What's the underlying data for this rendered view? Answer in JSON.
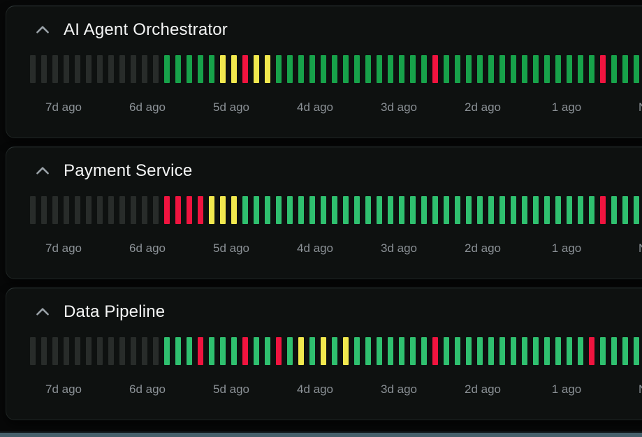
{
  "page": {
    "background": "#070808",
    "bottom_strip_color": "#46606b"
  },
  "status_colors": {
    "nodata": "#282c2a",
    "warn": "#f1e84e",
    "down": "#f0143f"
  },
  "axis_labels": [
    "7d ago",
    "6d ago",
    "5d ago",
    "4d ago",
    "3d ago",
    "2d ago",
    "1 ago",
    "Now"
  ],
  "icons": {
    "collapse": "chevron-up-icon"
  },
  "services": [
    {
      "name": "AI Agent Orchestrator",
      "up_color": "#17a24a",
      "bars": [
        "nodata",
        "nodata",
        "nodata",
        "nodata",
        "nodata",
        "nodata",
        "nodata",
        "nodata",
        "nodata",
        "nodata",
        "nodata",
        "nodata",
        "up",
        "up",
        "up",
        "up",
        "up",
        "warn",
        "warn",
        "down",
        "warn",
        "warn",
        "up",
        "up",
        "up",
        "up",
        "up",
        "up",
        "up",
        "up",
        "up",
        "up",
        "up",
        "up",
        "up",
        "up",
        "down",
        "up",
        "up",
        "up",
        "up",
        "up",
        "up",
        "up",
        "up",
        "up",
        "up",
        "up",
        "up",
        "up",
        "up",
        "down",
        "up",
        "up",
        "up"
      ]
    },
    {
      "name": "Payment Service",
      "up_color": "#2fc06f",
      "bars": [
        "nodata",
        "nodata",
        "nodata",
        "nodata",
        "nodata",
        "nodata",
        "nodata",
        "nodata",
        "nodata",
        "nodata",
        "nodata",
        "nodata",
        "down",
        "down",
        "down",
        "down",
        "warn",
        "warn",
        "warn",
        "up",
        "up",
        "up",
        "up",
        "up",
        "up",
        "up",
        "up",
        "up",
        "up",
        "up",
        "up",
        "up",
        "up",
        "up",
        "up",
        "up",
        "up",
        "up",
        "up",
        "up",
        "up",
        "up",
        "up",
        "up",
        "up",
        "up",
        "up",
        "up",
        "up",
        "up",
        "up",
        "down",
        "up",
        "up",
        "up",
        "up"
      ]
    },
    {
      "name": "Data Pipeline",
      "up_color": "#2fc06f",
      "bars": [
        "nodata",
        "nodata",
        "nodata",
        "nodata",
        "nodata",
        "nodata",
        "nodata",
        "nodata",
        "nodata",
        "nodata",
        "nodata",
        "nodata",
        "up",
        "up",
        "up",
        "down",
        "up",
        "up",
        "up",
        "down",
        "up",
        "up",
        "down",
        "up",
        "warn",
        "up",
        "warn",
        "up",
        "warn",
        "up",
        "up",
        "up",
        "up",
        "up",
        "up",
        "up",
        "down",
        "up",
        "up",
        "up",
        "up",
        "up",
        "up",
        "up",
        "up",
        "up",
        "up",
        "up",
        "up",
        "up",
        "down",
        "up",
        "up",
        "up",
        "up"
      ]
    }
  ]
}
